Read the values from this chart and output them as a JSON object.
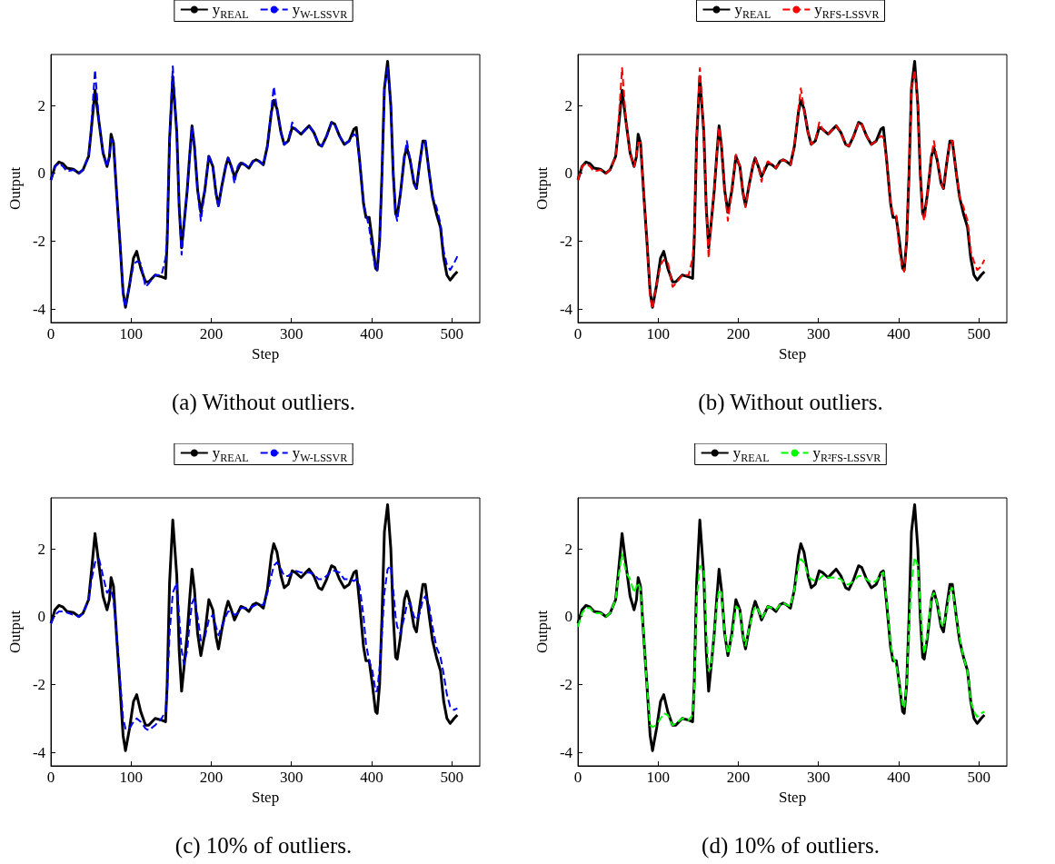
{
  "chart_data": [
    {
      "type": "line",
      "title": "(a) Without outliers.",
      "xlabel": "Step",
      "ylabel": "Output",
      "xlim": [
        0,
        535
      ],
      "xticks": [
        0,
        100,
        200,
        300,
        400,
        500
      ],
      "ylim": [
        -4.4,
        3.5
      ],
      "yticks": [
        -4,
        -2,
        0,
        2
      ],
      "legend": "top",
      "grid": false,
      "x": [
        0,
        5,
        10,
        15,
        20,
        28,
        35,
        40,
        47,
        50,
        55,
        60,
        65,
        70,
        73,
        75,
        78,
        82,
        86,
        90,
        93,
        98,
        103,
        107,
        112,
        118,
        122,
        130,
        138,
        143,
        145,
        148,
        152,
        157,
        160,
        163,
        166,
        170,
        173,
        176,
        179,
        183,
        187,
        192,
        197,
        202,
        206,
        209,
        213,
        218,
        221,
        225,
        229,
        233,
        237,
        242,
        247,
        252,
        256,
        260,
        265,
        270,
        275,
        278,
        282,
        287,
        291,
        296,
        301,
        305,
        312,
        318,
        322,
        328,
        334,
        338,
        344,
        350,
        354,
        360,
        366,
        372,
        378,
        381,
        385,
        390,
        393,
        397,
        401,
        405,
        407,
        410,
        413,
        416,
        420,
        424,
        427,
        430,
        432,
        436,
        441,
        444,
        448,
        453,
        456,
        460,
        464,
        467,
        472,
        476,
        481,
        486,
        490,
        494,
        498,
        503,
        507
      ],
      "series": [
        {
          "name": "y$_{REAL}$",
          "color": "#000000",
          "line_style": "solid",
          "values": [
            -0.2,
            0.2,
            0.33,
            0.28,
            0.15,
            0.12,
            0,
            0.1,
            0.5,
            1.2,
            2.45,
            1.5,
            0.6,
            0.2,
            0.5,
            1.15,
            0.9,
            -0.6,
            -2,
            -3.5,
            -3.95,
            -3.3,
            -2.5,
            -2.3,
            -2.8,
            -3.2,
            -3.2,
            -3,
            -3.05,
            -3.1,
            -2,
            1,
            2.85,
            1.2,
            -1,
            -2.2,
            -1.5,
            -0.5,
            0.5,
            1.4,
            0.8,
            -0.5,
            -1.15,
            -0.5,
            0.5,
            0.2,
            -0.6,
            -0.95,
            -0.4,
            0.2,
            0.45,
            0.2,
            -0.1,
            0.1,
            0.3,
            0.25,
            0.15,
            0.35,
            0.4,
            0.35,
            0.25,
            0.8,
            1.8,
            2.15,
            1.9,
            1.2,
            0.85,
            0.95,
            1.35,
            1.3,
            1.15,
            1.3,
            1.4,
            1.2,
            0.85,
            0.8,
            1.1,
            1.5,
            1.45,
            1.1,
            0.85,
            0.95,
            1.3,
            1.35,
            0.4,
            -0.9,
            -1.3,
            -1.3,
            -2,
            -2.8,
            -2.85,
            -2,
            0,
            2.5,
            3.3,
            2,
            0,
            -1.2,
            -1.25,
            -0.6,
            0.5,
            0.75,
            0.4,
            -0.3,
            -0.45,
            0.3,
            0.95,
            0.95,
            0,
            -0.7,
            -1.2,
            -1.6,
            -2.5,
            -3,
            -3.15,
            -3,
            -2.9
          ]
        },
        {
          "name": "y$_{W-LSSVR}$",
          "color": "#0000ff",
          "line_style": "dashed",
          "values": [
            -0.2,
            0.2,
            0.3,
            0.2,
            0.05,
            0.1,
            0,
            0.1,
            0.5,
            1.3,
            3.05,
            1.5,
            0.6,
            0.2,
            0.5,
            1.0,
            0.9,
            -0.6,
            -2,
            -3.6,
            -3.95,
            -3.3,
            -2.7,
            -2.6,
            -2.65,
            -3.35,
            -3.25,
            -3,
            -3,
            -2.5,
            -1.8,
            1,
            3.15,
            1.2,
            -1,
            -2.4,
            -1.5,
            -0.5,
            0.5,
            1.35,
            0.8,
            -0.5,
            -1.4,
            -0.5,
            0.55,
            0.2,
            -0.6,
            -1,
            -0.4,
            0.2,
            0.45,
            0.2,
            -0.3,
            0.2,
            0.35,
            0.25,
            0.15,
            0.35,
            0.4,
            0.35,
            0.25,
            0.8,
            1.9,
            2.55,
            1.9,
            1.2,
            0.85,
            0.95,
            1.5,
            1.3,
            1.15,
            1.3,
            1.4,
            1.2,
            0.85,
            0.8,
            1.1,
            1.5,
            1.45,
            1.1,
            0.85,
            0.95,
            1.15,
            1.1,
            0.4,
            -0.9,
            -1.2,
            -1.6,
            -2.3,
            -2.8,
            -2.85,
            -2,
            0,
            2.5,
            3.1,
            2,
            0,
            -1.2,
            -1.4,
            -0.6,
            0.5,
            0.95,
            0.4,
            -0.3,
            -0.45,
            0.3,
            0.95,
            0.95,
            0,
            -0.7,
            -1.0,
            -1.5,
            -2.3,
            -2.7,
            -2.85,
            -2.65,
            -2.45
          ]
        }
      ]
    },
    {
      "type": "line",
      "title": "(b) Without outliers.",
      "xlabel": "Step",
      "ylabel": "Output",
      "xlim": [
        0,
        535
      ],
      "xticks": [
        0,
        100,
        200,
        300,
        400,
        500
      ],
      "ylim": [
        -4.4,
        3.5
      ],
      "yticks": [
        -4,
        -2,
        0,
        2
      ],
      "legend": "top",
      "grid": false,
      "x": [
        0,
        5,
        10,
        15,
        20,
        28,
        35,
        40,
        47,
        50,
        55,
        60,
        65,
        70,
        73,
        75,
        78,
        82,
        86,
        90,
        93,
        98,
        103,
        107,
        112,
        118,
        122,
        130,
        138,
        143,
        145,
        148,
        152,
        157,
        160,
        163,
        166,
        170,
        173,
        176,
        179,
        183,
        187,
        192,
        197,
        202,
        206,
        209,
        213,
        218,
        221,
        225,
        229,
        233,
        237,
        242,
        247,
        252,
        256,
        260,
        265,
        270,
        275,
        278,
        282,
        287,
        291,
        296,
        301,
        305,
        312,
        318,
        322,
        328,
        334,
        338,
        344,
        350,
        354,
        360,
        366,
        372,
        378,
        381,
        385,
        390,
        393,
        397,
        401,
        405,
        407,
        410,
        413,
        416,
        420,
        424,
        427,
        430,
        432,
        436,
        441,
        444,
        448,
        453,
        456,
        460,
        464,
        467,
        472,
        476,
        481,
        486,
        490,
        494,
        498,
        503,
        507
      ],
      "series": [
        {
          "name": "y$_{REAL}$",
          "color": "#000000",
          "line_style": "solid",
          "values": [
            -0.2,
            0.2,
            0.33,
            0.28,
            0.15,
            0.12,
            0,
            0.1,
            0.5,
            1.2,
            2.45,
            1.5,
            0.6,
            0.2,
            0.5,
            1.15,
            0.9,
            -0.6,
            -2,
            -3.5,
            -3.95,
            -3.3,
            -2.5,
            -2.3,
            -2.8,
            -3.2,
            -3.2,
            -3,
            -3.05,
            -3.1,
            -2,
            1,
            2.85,
            1.2,
            -1,
            -2.2,
            -1.5,
            -0.5,
            0.5,
            1.4,
            0.8,
            -0.5,
            -1.15,
            -0.5,
            0.5,
            0.2,
            -0.6,
            -0.95,
            -0.4,
            0.2,
            0.45,
            0.2,
            -0.1,
            0.1,
            0.3,
            0.25,
            0.15,
            0.35,
            0.4,
            0.35,
            0.25,
            0.8,
            1.8,
            2.15,
            1.9,
            1.2,
            0.85,
            0.95,
            1.35,
            1.3,
            1.15,
            1.3,
            1.4,
            1.2,
            0.85,
            0.8,
            1.1,
            1.5,
            1.45,
            1.1,
            0.85,
            0.95,
            1.3,
            1.35,
            0.4,
            -0.9,
            -1.3,
            -1.3,
            -2,
            -2.8,
            -2.85,
            -2,
            0,
            2.5,
            3.3,
            2,
            0,
            -1.2,
            -1.25,
            -0.6,
            0.5,
            0.75,
            0.4,
            -0.3,
            -0.45,
            0.3,
            0.95,
            0.95,
            0,
            -0.7,
            -1.2,
            -1.6,
            -2.5,
            -3,
            -3.15,
            -3,
            -2.9
          ]
        },
        {
          "name": "y$_{RFS-LSSVR}$",
          "color": "#ff0000",
          "line_style": "dashed",
          "values": [
            -0.2,
            0.2,
            0.3,
            0.2,
            0.05,
            0.1,
            0,
            0.1,
            0.5,
            1.3,
            3.1,
            1.5,
            0.6,
            0.2,
            0.5,
            0.9,
            0.9,
            -0.6,
            -2,
            -3.6,
            -4.0,
            -3.3,
            -2.7,
            -2.55,
            -2.6,
            -3.35,
            -3.25,
            -3,
            -3,
            -2.5,
            -1.8,
            1,
            3.1,
            1.2,
            -1,
            -2.5,
            -1.5,
            -0.5,
            0.5,
            1.35,
            0.8,
            -0.5,
            -1.4,
            -0.5,
            0.55,
            0.2,
            -0.6,
            -1,
            -0.4,
            0.2,
            0.45,
            0.2,
            -0.25,
            0.2,
            0.35,
            0.25,
            0.15,
            0.35,
            0.4,
            0.35,
            0.25,
            0.8,
            1.9,
            2.5,
            1.9,
            1.2,
            0.85,
            0.95,
            1.5,
            1.3,
            1.15,
            1.3,
            1.4,
            1.2,
            0.85,
            0.8,
            1.1,
            1.5,
            1.45,
            1.1,
            0.85,
            0.95,
            1.1,
            1.05,
            0.4,
            -0.9,
            -1.2,
            -1.2,
            -2.3,
            -2.8,
            -2.9,
            -2,
            0,
            2.5,
            3.05,
            2,
            0,
            -1.2,
            -1.4,
            -0.6,
            0.5,
            0.95,
            0.4,
            -0.3,
            -0.45,
            0.3,
            0.95,
            0.95,
            0,
            -0.7,
            -1.0,
            -1.4,
            -2.3,
            -2.6,
            -2.85,
            -2.75,
            -2.55
          ]
        }
      ]
    },
    {
      "type": "line",
      "title": "(c) 10% of outliers.",
      "xlabel": "Step",
      "ylabel": "Output",
      "xlim": [
        0,
        535
      ],
      "xticks": [
        0,
        100,
        200,
        300,
        400,
        500
      ],
      "ylim": [
        -4.4,
        3.5
      ],
      "yticks": [
        -4,
        -2,
        0,
        2
      ],
      "legend": "top",
      "grid": false,
      "x": [
        0,
        5,
        10,
        15,
        20,
        28,
        35,
        40,
        47,
        50,
        55,
        60,
        65,
        70,
        73,
        75,
        78,
        82,
        86,
        90,
        93,
        98,
        103,
        107,
        112,
        118,
        122,
        130,
        138,
        143,
        145,
        148,
        152,
        157,
        160,
        163,
        166,
        170,
        173,
        176,
        179,
        183,
        187,
        192,
        197,
        202,
        206,
        209,
        213,
        218,
        221,
        225,
        229,
        233,
        237,
        242,
        247,
        252,
        256,
        260,
        265,
        270,
        275,
        278,
        282,
        287,
        291,
        296,
        301,
        305,
        312,
        318,
        322,
        328,
        334,
        338,
        344,
        350,
        354,
        360,
        366,
        372,
        378,
        381,
        385,
        390,
        393,
        397,
        401,
        405,
        407,
        410,
        413,
        416,
        420,
        424,
        427,
        430,
        432,
        436,
        441,
        444,
        448,
        453,
        456,
        460,
        464,
        467,
        472,
        476,
        481,
        486,
        490,
        494,
        498,
        503,
        507
      ],
      "series": [
        {
          "name": "y$_{REAL}$",
          "color": "#000000",
          "line_style": "solid",
          "values": [
            -0.2,
            0.2,
            0.33,
            0.28,
            0.15,
            0.12,
            0,
            0.1,
            0.5,
            1.2,
            2.45,
            1.5,
            0.6,
            0.2,
            0.5,
            1.15,
            0.9,
            -0.6,
            -2,
            -3.5,
            -3.95,
            -3.3,
            -2.5,
            -2.3,
            -2.8,
            -3.2,
            -3.2,
            -3,
            -3.05,
            -3.1,
            -2,
            1,
            2.85,
            1.2,
            -1,
            -2.2,
            -1.5,
            -0.5,
            0.5,
            1.4,
            0.8,
            -0.5,
            -1.15,
            -0.5,
            0.5,
            0.2,
            -0.6,
            -0.95,
            -0.4,
            0.2,
            0.45,
            0.2,
            -0.1,
            0.1,
            0.3,
            0.25,
            0.15,
            0.35,
            0.4,
            0.35,
            0.25,
            0.8,
            1.8,
            2.15,
            1.9,
            1.2,
            0.85,
            0.95,
            1.35,
            1.3,
            1.15,
            1.3,
            1.4,
            1.2,
            0.85,
            0.8,
            1.1,
            1.5,
            1.45,
            1.1,
            0.85,
            0.95,
            1.3,
            1.35,
            0.4,
            -0.9,
            -1.3,
            -1.3,
            -2,
            -2.8,
            -2.85,
            -2,
            0,
            2.5,
            3.3,
            2,
            0,
            -1.2,
            -1.25,
            -0.6,
            0.5,
            0.75,
            0.4,
            -0.3,
            -0.45,
            0.3,
            0.95,
            0.95,
            0,
            -0.7,
            -1.2,
            -1.6,
            -2.5,
            -3,
            -3.15,
            -3,
            -2.9
          ]
        },
        {
          "name": "y$_{W-LSSVR}$",
          "color": "#0000ff",
          "line_style": "dashed",
          "values": [
            -0.2,
            0.05,
            0.15,
            0.15,
            0.12,
            0.05,
            0,
            0.1,
            0.5,
            1.0,
            1.6,
            1.7,
            1.2,
            0.7,
            0.8,
            0.8,
            0.5,
            -0.5,
            -1.8,
            -3.0,
            -3.3,
            -3.3,
            -3.1,
            -3.0,
            -3.1,
            -3.3,
            -3.35,
            -3.2,
            -3.0,
            -2.8,
            -2.2,
            -0.5,
            0.7,
            1.0,
            0.0,
            -1.0,
            -1.4,
            -1.0,
            -0.2,
            0.4,
            0.55,
            0.0,
            -0.7,
            -0.6,
            -0.1,
            0.05,
            -0.3,
            -0.55,
            -0.3,
            0.0,
            0.15,
            0.15,
            0.05,
            0.1,
            0.25,
            0.25,
            0.25,
            0.3,
            0.35,
            0.35,
            0.35,
            0.7,
            1.2,
            1.5,
            1.6,
            1.4,
            1.2,
            1.2,
            1.3,
            1.35,
            1.3,
            1.3,
            1.3,
            1.25,
            1.1,
            1.1,
            1.2,
            1.35,
            1.35,
            1.3,
            1.1,
            1.1,
            1.05,
            1.1,
            0.9,
            0.0,
            -0.8,
            -1.3,
            -1.6,
            -2.2,
            -2.2,
            -1.5,
            -0.5,
            0.7,
            1.4,
            1.5,
            0.8,
            0.0,
            -0.3,
            -0.5,
            0.0,
            0.35,
            0.4,
            0.0,
            -0.1,
            0.1,
            0.5,
            0.6,
            0.3,
            -0.3,
            -0.9,
            -1.2,
            -1.7,
            -2.3,
            -2.65,
            -2.75,
            -2.7
          ]
        }
      ]
    },
    {
      "type": "line",
      "title": "(d) 10% of outliers.",
      "xlabel": "Step",
      "ylabel": "Output",
      "xlim": [
        0,
        535
      ],
      "xticks": [
        0,
        100,
        200,
        300,
        400,
        500
      ],
      "ylim": [
        -4.4,
        3.5
      ],
      "yticks": [
        -4,
        -2,
        0,
        2
      ],
      "legend": "top",
      "grid": false,
      "x": [
        0,
        5,
        10,
        15,
        20,
        28,
        35,
        40,
        47,
        50,
        55,
        60,
        65,
        70,
        73,
        75,
        78,
        82,
        86,
        90,
        93,
        98,
        103,
        107,
        112,
        118,
        122,
        130,
        138,
        143,
        145,
        148,
        152,
        157,
        160,
        163,
        166,
        170,
        173,
        176,
        179,
        183,
        187,
        192,
        197,
        202,
        206,
        209,
        213,
        218,
        221,
        225,
        229,
        233,
        237,
        242,
        247,
        252,
        256,
        260,
        265,
        270,
        275,
        278,
        282,
        287,
        291,
        296,
        301,
        305,
        312,
        318,
        322,
        328,
        334,
        338,
        344,
        350,
        354,
        360,
        366,
        372,
        378,
        381,
        385,
        390,
        393,
        397,
        401,
        405,
        407,
        410,
        413,
        416,
        420,
        424,
        427,
        430,
        432,
        436,
        441,
        444,
        448,
        453,
        456,
        460,
        464,
        467,
        472,
        476,
        481,
        486,
        490,
        494,
        498,
        503,
        507
      ],
      "series": [
        {
          "name": "y$_{REAL}$",
          "color": "#000000",
          "line_style": "solid",
          "values": [
            -0.2,
            0.2,
            0.33,
            0.28,
            0.15,
            0.12,
            0,
            0.1,
            0.5,
            1.2,
            2.45,
            1.5,
            0.6,
            0.2,
            0.5,
            1.15,
            0.9,
            -0.6,
            -2,
            -3.5,
            -3.95,
            -3.3,
            -2.5,
            -2.3,
            -2.8,
            -3.2,
            -3.2,
            -3,
            -3.05,
            -3.1,
            -2,
            1,
            2.85,
            1.2,
            -1,
            -2.2,
            -1.5,
            -0.5,
            0.5,
            1.4,
            0.8,
            -0.5,
            -1.15,
            -0.5,
            0.5,
            0.2,
            -0.6,
            -0.95,
            -0.4,
            0.2,
            0.45,
            0.2,
            -0.1,
            0.1,
            0.3,
            0.25,
            0.15,
            0.35,
            0.4,
            0.35,
            0.25,
            0.8,
            1.8,
            2.15,
            1.9,
            1.2,
            0.85,
            0.95,
            1.35,
            1.3,
            1.15,
            1.3,
            1.4,
            1.2,
            0.85,
            0.8,
            1.1,
            1.5,
            1.45,
            1.1,
            0.85,
            0.95,
            1.3,
            1.35,
            0.4,
            -0.9,
            -1.3,
            -1.3,
            -2,
            -2.8,
            -2.85,
            -2,
            0,
            2.5,
            3.3,
            2,
            0,
            -1.2,
            -1.25,
            -0.6,
            0.5,
            0.75,
            0.4,
            -0.3,
            -0.45,
            0.3,
            0.95,
            0.95,
            0,
            -0.7,
            -1.2,
            -1.6,
            -2.5,
            -3,
            -3.15,
            -3,
            -2.9
          ]
        },
        {
          "name": "y$_{R²FS-LSSVR}$",
          "color": "#00ff00",
          "line_style": "dashed",
          "values": [
            -0.3,
            0.1,
            0.25,
            0.25,
            0.1,
            0.1,
            0,
            0.1,
            0.5,
            1.1,
            1.85,
            1.3,
            1.1,
            0.7,
            0.9,
            1.0,
            0.8,
            -0.6,
            -2,
            -3.2,
            -3.25,
            -3.2,
            -3.0,
            -2.85,
            -2.9,
            -3.2,
            -3.15,
            -3,
            -3.05,
            -2.9,
            -2.2,
            0.5,
            1.5,
            1.4,
            -0.5,
            -1.6,
            -1.5,
            -0.5,
            0.3,
            0.8,
            0.7,
            -0.5,
            -1.1,
            -0.6,
            0.3,
            0.2,
            -0.6,
            -0.85,
            -0.4,
            0.1,
            0.3,
            0.2,
            -0.05,
            0.1,
            0.3,
            0.25,
            0.2,
            0.35,
            0.4,
            0.35,
            0.3,
            0.8,
            1.5,
            1.7,
            1.6,
            1.2,
            1.1,
            1.05,
            1.1,
            1.2,
            1.15,
            1.15,
            1.15,
            1.1,
            0.95,
            0.95,
            1.05,
            1.2,
            1.2,
            1.1,
            1.0,
            1.05,
            1.25,
            1.3,
            0.5,
            -0.8,
            -1.2,
            -1.4,
            -2.0,
            -2.6,
            -2.7,
            -2.0,
            -0.3,
            1.0,
            1.75,
            1.5,
            0.3,
            -0.7,
            -1.1,
            -0.5,
            0.55,
            0.7,
            0.4,
            -0.2,
            -0.3,
            0.2,
            0.75,
            0.85,
            0,
            -0.6,
            -1.2,
            -1.6,
            -2.5,
            -2.8,
            -2.95,
            -2.85,
            -2.8
          ]
        }
      ]
    }
  ]
}
